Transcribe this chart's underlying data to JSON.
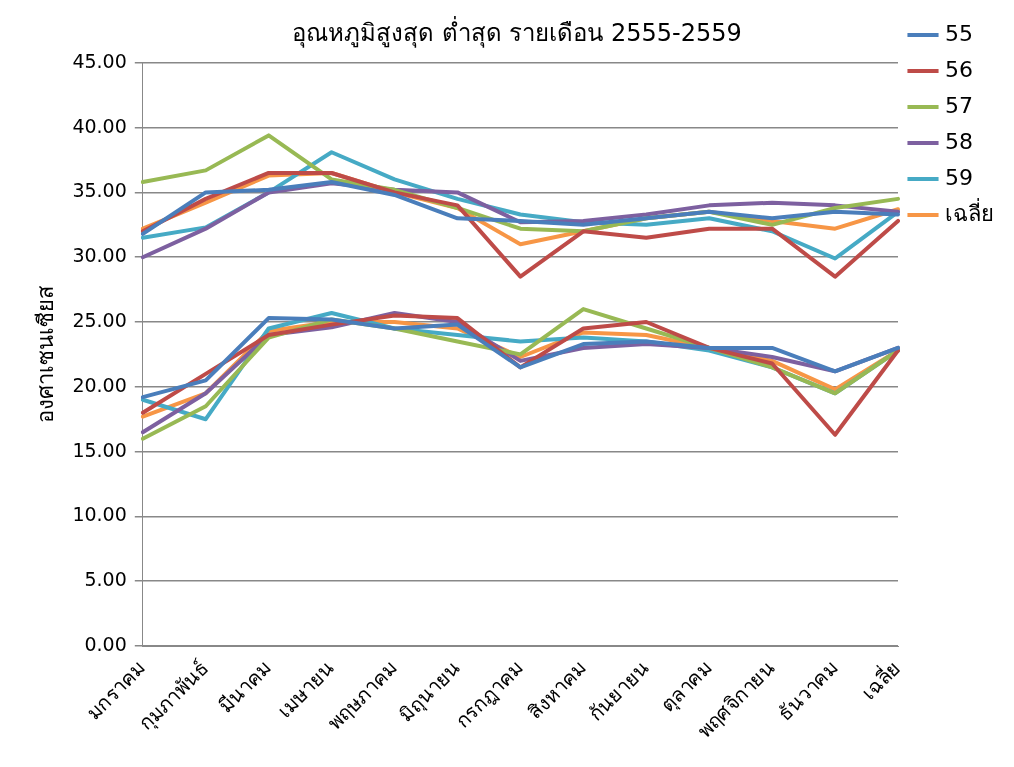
{
  "chart_data": {
    "type": "line",
    "title": "อุณหภูมิสูงสุด ต่ำสุด รายเดือน 2555-2559",
    "ylabel": "องศาเซนเซียส",
    "categories": [
      "มกราคม",
      "กุมภาพันธ์",
      "มีนาคม",
      "เมษายน",
      "พฤษภาคม",
      "มิถุนายน",
      "กรกฎาคม",
      "สิงหาคม",
      "กันยายน",
      "ตุลาคม",
      "พฤศจิกายน",
      "ธันวาคม",
      "เฉลี่ย"
    ],
    "ylim": [
      0,
      45
    ],
    "yticks": [
      {
        "value": 0,
        "label": "0.00"
      },
      {
        "value": 5,
        "label": "5.00"
      },
      {
        "value": 10,
        "label": "10.00"
      },
      {
        "value": 15,
        "label": "15.00"
      },
      {
        "value": 20,
        "label": "20.00"
      },
      {
        "value": 25,
        "label": "25.00"
      },
      {
        "value": 30,
        "label": "30.00"
      },
      {
        "value": 35,
        "label": "35.00"
      },
      {
        "value": 40,
        "label": "40.00"
      },
      {
        "value": 45,
        "label": "45.00"
      }
    ],
    "grid": "y",
    "legend": "top right",
    "marker": "none",
    "line_style": "solid",
    "series": [
      {
        "name": "55",
        "color": "#4a7ebb",
        "values": [
          31.8,
          35.0,
          35.2,
          35.8,
          34.8,
          33.0,
          32.8,
          32.5,
          33.0,
          33.5,
          33.0,
          33.5,
          33.3
        ]
      },
      {
        "name": "56",
        "color": "#be4b48",
        "values": [
          32.0,
          34.5,
          36.5,
          36.5,
          35.0,
          34.0,
          28.5,
          32.0,
          31.5,
          32.2,
          32.2,
          28.5,
          32.8
        ]
      },
      {
        "name": "57",
        "color": "#98b954",
        "values": [
          35.8,
          36.7,
          39.4,
          36.0,
          35.2,
          33.8,
          32.2,
          32.0,
          33.0,
          33.5,
          32.5,
          33.8,
          34.5
        ]
      },
      {
        "name": "58",
        "color": "#7d60a0",
        "values": [
          30.0,
          32.2,
          35.0,
          35.7,
          35.2,
          35.0,
          32.7,
          32.8,
          33.3,
          34.0,
          34.2,
          34.0,
          33.5
        ]
      },
      {
        "name": "59",
        "color": "#46aac5",
        "values": [
          31.5,
          32.3,
          35.0,
          38.1,
          36.0,
          34.5,
          33.3,
          32.7,
          32.5,
          33.0,
          32.0,
          29.9,
          33.5
        ]
      },
      {
        "name": "เฉลี่ย",
        "color": "#f79646",
        "values": [
          32.2,
          34.2,
          36.3,
          36.5,
          35.0,
          33.8,
          31.0,
          32.0,
          33.0,
          33.5,
          32.8,
          32.2,
          33.7
        ]
      },
      {
        "color": "#4a7ebb",
        "values": [
          19.2,
          20.5,
          25.3,
          25.2,
          24.5,
          24.8,
          21.5,
          23.3,
          23.5,
          23.0,
          23.0,
          21.2,
          23.0
        ]
      },
      {
        "color": "#be4b48",
        "values": [
          18.0,
          21.0,
          24.0,
          24.8,
          25.5,
          25.3,
          21.5,
          24.5,
          25.0,
          23.0,
          21.8,
          16.3,
          22.8
        ]
      },
      {
        "color": "#98b954",
        "values": [
          16.0,
          18.5,
          23.8,
          25.2,
          24.5,
          23.5,
          22.5,
          26.0,
          24.5,
          23.0,
          21.5,
          19.5,
          22.8
        ]
      },
      {
        "color": "#7d60a0",
        "values": [
          16.5,
          19.5,
          24.0,
          24.6,
          25.7,
          25.0,
          22.0,
          23.0,
          23.3,
          23.0,
          22.3,
          21.2,
          23.0
        ]
      },
      {
        "color": "#46aac5",
        "values": [
          19.0,
          17.5,
          24.5,
          25.7,
          24.5,
          24.0,
          23.5,
          23.8,
          23.5,
          22.8,
          21.5,
          19.5,
          22.8
        ]
      },
      {
        "color": "#f79646",
        "values": [
          17.7,
          19.5,
          24.3,
          25.0,
          25.0,
          24.5,
          22.3,
          24.2,
          24.0,
          23.0,
          22.0,
          19.8,
          22.8
        ]
      }
    ]
  }
}
